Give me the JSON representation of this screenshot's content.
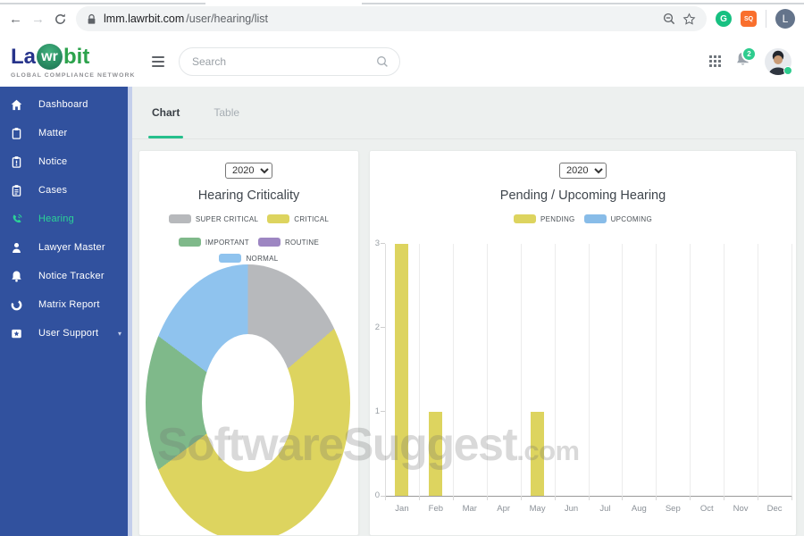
{
  "browser": {
    "url_host": "lmm.lawrbit.com",
    "url_path": "/user/hearing/list",
    "profile_initial": "L",
    "extension_green_label": "G",
    "extension_orange_label": "SQ"
  },
  "header": {
    "logo_la": "La",
    "logo_wr": "wr",
    "logo_bit": "bit",
    "logo_subtitle": "GLOBAL COMPLIANCE NETWORK",
    "search_placeholder": "Search",
    "notification_count": "2"
  },
  "sidebar": {
    "items": [
      {
        "label": "Dashboard",
        "icon": "home",
        "active": false
      },
      {
        "label": "Matter",
        "icon": "clipboard",
        "active": false
      },
      {
        "label": "Notice",
        "icon": "clipboard-alert",
        "active": false
      },
      {
        "label": "Cases",
        "icon": "clipboard-list",
        "active": false
      },
      {
        "label": "Hearing",
        "icon": "call",
        "active": true
      },
      {
        "label": "Lawyer Master",
        "icon": "person",
        "active": false
      },
      {
        "label": "Notice Tracker",
        "icon": "bell",
        "active": false
      },
      {
        "label": "Matrix Report",
        "icon": "ring",
        "active": false
      },
      {
        "label": "User Support",
        "icon": "badge-star",
        "active": false,
        "caret": true
      }
    ]
  },
  "tabs": [
    {
      "label": "Chart",
      "active": true
    },
    {
      "label": "Table",
      "active": false
    }
  ],
  "watermark": {
    "text": "SoftwareSuggest",
    "suffix": ".com"
  },
  "colors": {
    "sidebar_blue": "#31519e",
    "accent_green": "#2bd396",
    "tab_underline": "#26bf8c",
    "badge_green": "#2ecc8e",
    "content_bg": "#edf0ef"
  },
  "chart_data": [
    {
      "type": "pie",
      "subtype": "doughnut",
      "title": "Hearing Criticality",
      "year_selector": "2020",
      "segments": [
        {
          "label": "SUPER CRITICAL",
          "pct": 16,
          "color": "#b7b9bc"
        },
        {
          "label": "CRITICAL",
          "pct": 51,
          "color": "#ddd45f"
        },
        {
          "label": "IMPORTANT",
          "pct": 16,
          "color": "#7fb98a"
        },
        {
          "label": "ROUTINE",
          "pct": 0,
          "color": "#9d86c2"
        },
        {
          "label": "NORMAL",
          "pct": 17,
          "color": "#8fc3ee"
        }
      ],
      "legend_position": "top",
      "hole_ratio": 0.46
    },
    {
      "type": "bar",
      "title": "Pending / Upcoming Hearing",
      "year_selector": "2020",
      "categories": [
        "Jan",
        "Feb",
        "Mar",
        "Apr",
        "May",
        "Jun",
        "Jul",
        "Aug",
        "Sep",
        "Oct",
        "Nov",
        "Dec"
      ],
      "series": [
        {
          "name": "PENDING",
          "color": "#ddd45f",
          "values": [
            3,
            1,
            0,
            0,
            1,
            0,
            0,
            0,
            0,
            0,
            0,
            0
          ]
        },
        {
          "name": "UPCOMING",
          "color": "#88bce8",
          "values": [
            0,
            0,
            0,
            0,
            0,
            0,
            0,
            0,
            0,
            0,
            0,
            0
          ]
        }
      ],
      "ylim": [
        0,
        3
      ],
      "yticks": [
        0,
        1,
        2,
        3
      ],
      "grid": "vertical",
      "legend_position": "top"
    }
  ]
}
